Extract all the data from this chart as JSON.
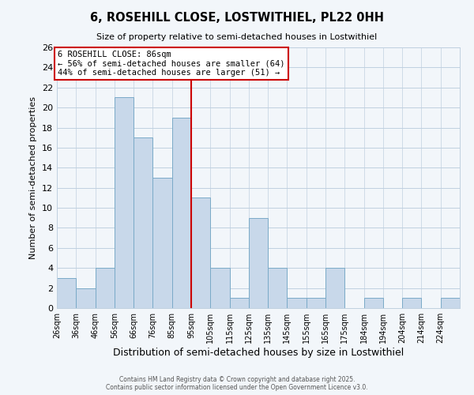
{
  "title": "6, ROSEHILL CLOSE, LOSTWITHIEL, PL22 0HH",
  "subtitle": "Size of property relative to semi-detached houses in Lostwithiel",
  "xlabel": "Distribution of semi-detached houses by size in Lostwithiel",
  "ylabel": "Number of semi-detached properties",
  "bar_color": "#c8d8ea",
  "bar_edge_color": "#7aaac8",
  "grid_color": "#c0d0e0",
  "background_color": "#f2f6fa",
  "vline_x": 7,
  "vline_color": "#cc0000",
  "annotation_title": "6 ROSEHILL CLOSE: 86sqm",
  "annotation_line1": "← 56% of semi-detached houses are smaller (64)",
  "annotation_line2": "44% of semi-detached houses are larger (51) →",
  "annotation_box_color": "#cc0000",
  "bin_labels": [
    "26sqm",
    "36sqm",
    "46sqm",
    "56sqm",
    "66sqm",
    "76sqm",
    "85sqm",
    "95sqm",
    "105sqm",
    "115sqm",
    "125sqm",
    "135sqm",
    "145sqm",
    "155sqm",
    "165sqm",
    "175sqm",
    "184sqm",
    "194sqm",
    "204sqm",
    "214sqm",
    "224sqm"
  ],
  "counts": [
    3,
    2,
    4,
    21,
    17,
    13,
    19,
    11,
    4,
    1,
    9,
    4,
    1,
    1,
    4,
    0,
    1,
    0,
    1,
    0,
    1
  ],
  "ylim": [
    0,
    26
  ],
  "yticks": [
    0,
    2,
    4,
    6,
    8,
    10,
    12,
    14,
    16,
    18,
    20,
    22,
    24,
    26
  ],
  "footer1": "Contains HM Land Registry data © Crown copyright and database right 2025.",
  "footer2": "Contains public sector information licensed under the Open Government Licence v3.0."
}
